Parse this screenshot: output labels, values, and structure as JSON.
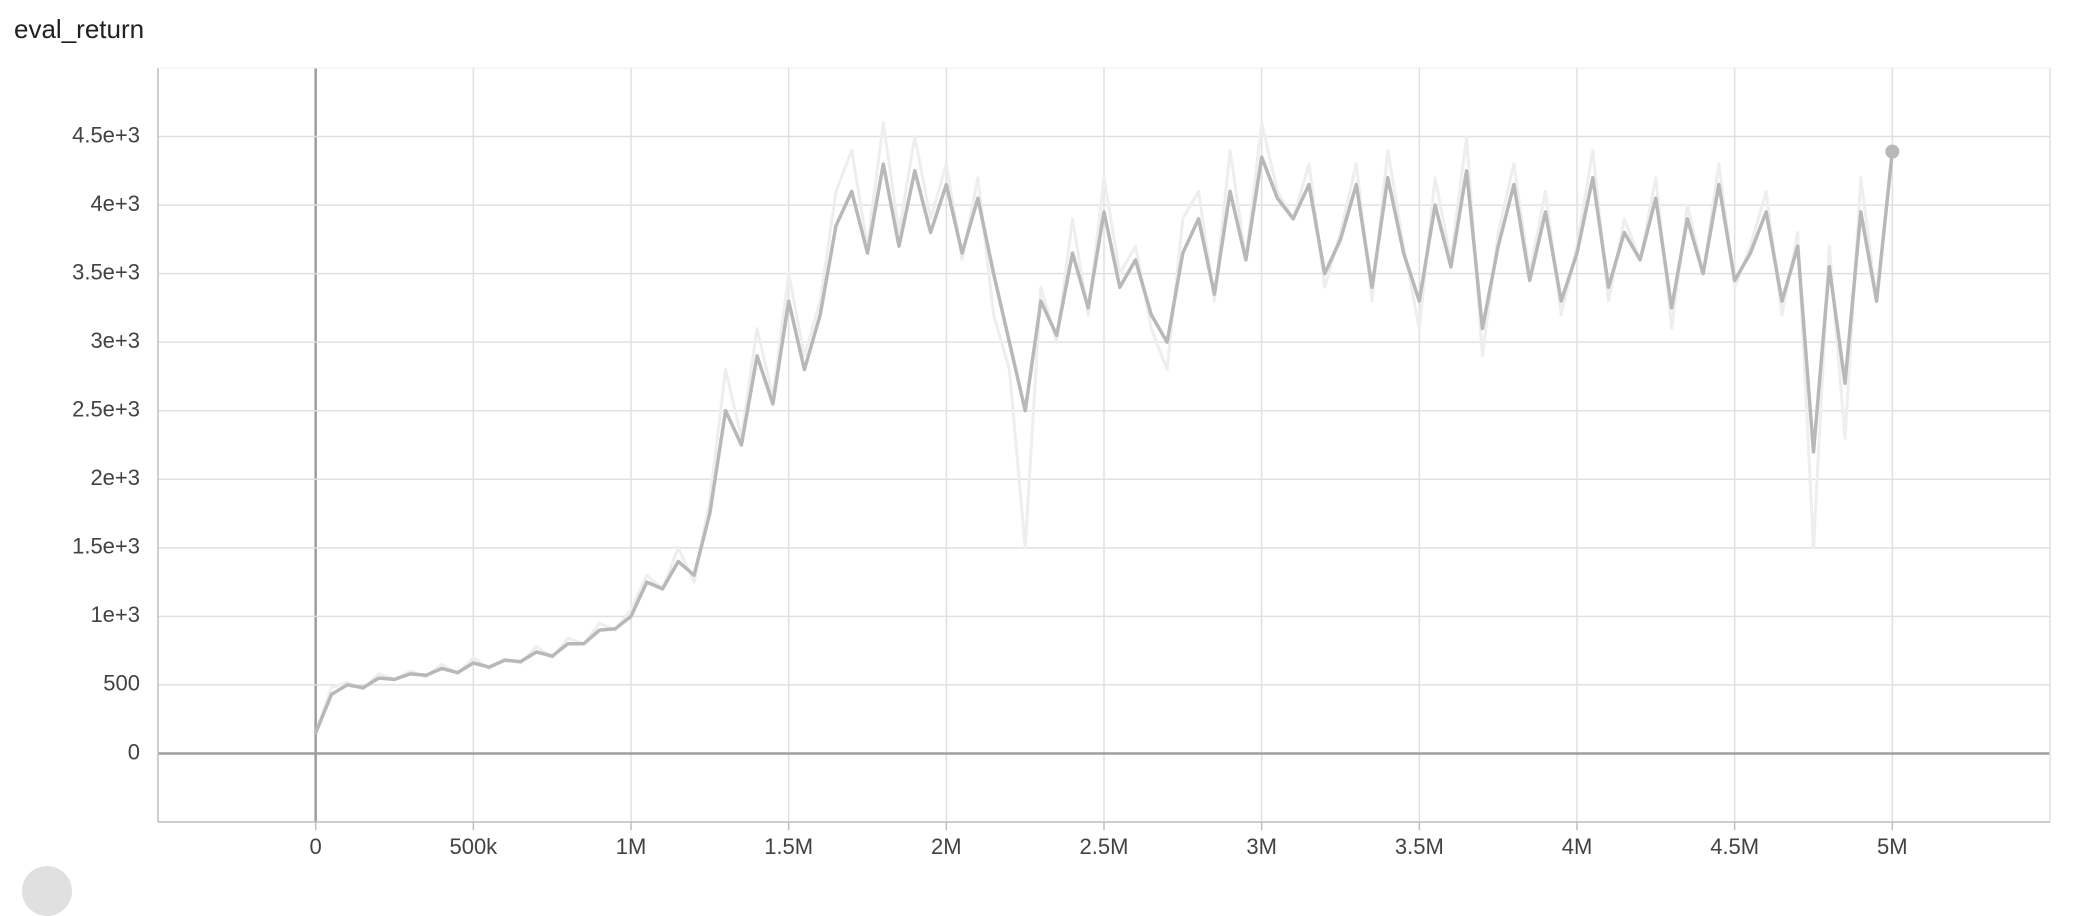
{
  "chart_data": {
    "type": "line",
    "title": "eval_return",
    "xlabel": "",
    "ylabel": "",
    "xlim": [
      -500000,
      5500000
    ],
    "ylim": [
      -500,
      5000
    ],
    "x_ticks": [
      {
        "value": 0,
        "label": "0"
      },
      {
        "value": 500000,
        "label": "500k"
      },
      {
        "value": 1000000,
        "label": "1M"
      },
      {
        "value": 1500000,
        "label": "1.5M"
      },
      {
        "value": 2000000,
        "label": "2M"
      },
      {
        "value": 2500000,
        "label": "2.5M"
      },
      {
        "value": 3000000,
        "label": "3M"
      },
      {
        "value": 3500000,
        "label": "3.5M"
      },
      {
        "value": 4000000,
        "label": "4M"
      },
      {
        "value": 4500000,
        "label": "4.5M"
      },
      {
        "value": 5000000,
        "label": "5M"
      }
    ],
    "y_ticks": [
      {
        "value": 0,
        "label": "0"
      },
      {
        "value": 500,
        "label": "500"
      },
      {
        "value": 1000,
        "label": "1e+3"
      },
      {
        "value": 1500,
        "label": "1.5e+3"
      },
      {
        "value": 2000,
        "label": "2e+3"
      },
      {
        "value": 2500,
        "label": "2.5e+3"
      },
      {
        "value": 3000,
        "label": "3e+3"
      },
      {
        "value": 3500,
        "label": "3.5e+3"
      },
      {
        "value": 4000,
        "label": "4e+3"
      },
      {
        "value": 4500,
        "label": "4.5e+3"
      }
    ],
    "grid": true,
    "legend": "none",
    "series": [
      {
        "role": "raw",
        "color": "#eeeeee",
        "x": [
          0,
          50000,
          100000,
          150000,
          200000,
          250000,
          300000,
          350000,
          400000,
          450000,
          500000,
          550000,
          600000,
          650000,
          700000,
          750000,
          800000,
          850000,
          900000,
          950000,
          1000000,
          1050000,
          1100000,
          1150000,
          1200000,
          1250000,
          1300000,
          1350000,
          1400000,
          1450000,
          1500000,
          1550000,
          1600000,
          1650000,
          1700000,
          1750000,
          1800000,
          1850000,
          1900000,
          1950000,
          2000000,
          2050000,
          2100000,
          2150000,
          2200000,
          2250000,
          2300000,
          2350000,
          2400000,
          2450000,
          2500000,
          2550000,
          2600000,
          2650000,
          2700000,
          2750000,
          2800000,
          2850000,
          2900000,
          2950000,
          3000000,
          3050000,
          3100000,
          3150000,
          3200000,
          3250000,
          3300000,
          3350000,
          3400000,
          3450000,
          3500000,
          3550000,
          3600000,
          3650000,
          3700000,
          3750000,
          3800000,
          3850000,
          3900000,
          3950000,
          4000000,
          4050000,
          4100000,
          4150000,
          4200000,
          4250000,
          4300000,
          4350000,
          4400000,
          4450000,
          4500000,
          4550000,
          4600000,
          4650000,
          4700000,
          4750000,
          4800000,
          4850000,
          4900000,
          4950000,
          5000000
        ],
        "y": [
          150,
          480,
          520,
          470,
          580,
          540,
          600,
          560,
          650,
          580,
          700,
          620,
          690,
          660,
          780,
          700,
          840,
          800,
          950,
          900,
          1050,
          1300,
          1200,
          1500,
          1250,
          1850,
          2800,
          2300,
          3100,
          2600,
          3500,
          2900,
          3300,
          4100,
          4400,
          3700,
          4600,
          3800,
          4500,
          3900,
          4300,
          3600,
          4200,
          3200,
          2800,
          1500,
          3400,
          3000,
          3900,
          3200,
          4200,
          3500,
          3700,
          3100,
          2800,
          3900,
          4100,
          3300,
          4400,
          3600,
          4600,
          4100,
          3900,
          4300,
          3400,
          3800,
          4300,
          3300,
          4400,
          3700,
          3100,
          4200,
          3600,
          4500,
          2900,
          3800,
          4300,
          3500,
          4100,
          3200,
          3700,
          4400,
          3300,
          3900,
          3600,
          4200,
          3100,
          4000,
          3500,
          4300,
          3400,
          3700,
          4100,
          3200,
          3800,
          1500,
          3700,
          2300,
          4200,
          3300,
          4400
        ]
      },
      {
        "role": "smoothed",
        "color": "#b8b8b8",
        "x": [
          0,
          50000,
          100000,
          150000,
          200000,
          250000,
          300000,
          350000,
          400000,
          450000,
          500000,
          550000,
          600000,
          650000,
          700000,
          750000,
          800000,
          850000,
          900000,
          950000,
          1000000,
          1050000,
          1100000,
          1150000,
          1200000,
          1250000,
          1300000,
          1350000,
          1400000,
          1450000,
          1500000,
          1550000,
          1600000,
          1650000,
          1700000,
          1750000,
          1800000,
          1850000,
          1900000,
          1950000,
          2000000,
          2050000,
          2100000,
          2150000,
          2200000,
          2250000,
          2300000,
          2350000,
          2400000,
          2450000,
          2500000,
          2550000,
          2600000,
          2650000,
          2700000,
          2750000,
          2800000,
          2850000,
          2900000,
          2950000,
          3000000,
          3050000,
          3100000,
          3150000,
          3200000,
          3250000,
          3300000,
          3350000,
          3400000,
          3450000,
          3500000,
          3550000,
          3600000,
          3650000,
          3700000,
          3750000,
          3800000,
          3850000,
          3900000,
          3950000,
          4000000,
          4050000,
          4100000,
          4150000,
          4200000,
          4250000,
          4300000,
          4350000,
          4400000,
          4450000,
          4500000,
          4550000,
          4600000,
          4650000,
          4700000,
          4750000,
          4800000,
          4850000,
          4900000,
          4950000,
          5000000
        ],
        "y": [
          150,
          430,
          500,
          480,
          550,
          540,
          580,
          570,
          620,
          590,
          660,
          630,
          680,
          670,
          740,
          710,
          800,
          800,
          900,
          910,
          1000,
          1250,
          1200,
          1400,
          1300,
          1750,
          2500,
          2250,
          2900,
          2550,
          3300,
          2800,
          3200,
          3850,
          4100,
          3650,
          4300,
          3700,
          4250,
          3800,
          4150,
          3650,
          4050,
          3500,
          3000,
          2500,
          3300,
          3050,
          3650,
          3250,
          3950,
          3400,
          3600,
          3200,
          3000,
          3650,
          3900,
          3350,
          4100,
          3600,
          4350,
          4050,
          3900,
          4150,
          3500,
          3750,
          4150,
          3400,
          4200,
          3650,
          3300,
          4000,
          3550,
          4250,
          3100,
          3700,
          4150,
          3450,
          3950,
          3300,
          3650,
          4200,
          3400,
          3800,
          3600,
          4050,
          3250,
          3900,
          3500,
          4150,
          3450,
          3650,
          3950,
          3300,
          3700,
          2200,
          3550,
          2700,
          3950,
          3300,
          4390
        ]
      }
    ]
  }
}
